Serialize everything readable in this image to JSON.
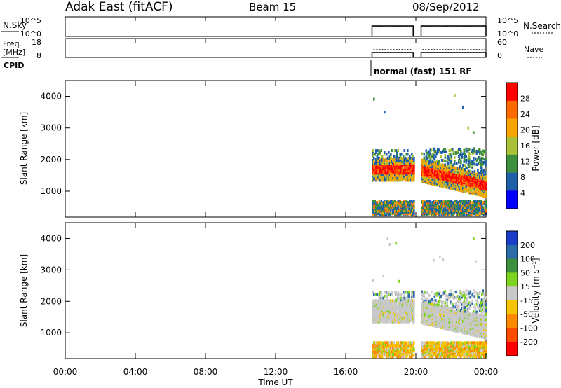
{
  "header": {
    "station": "Adak East (fitACF)",
    "beam": "Beam 15",
    "date": "08/Sep/2012"
  },
  "chart_data": [
    {
      "type": "line",
      "panel": "noise",
      "left_label": "N.Sky",
      "left_ticks": [
        "10^5",
        "10^0"
      ],
      "right_ticks": [
        "10^5",
        "10^0"
      ],
      "right_label": "N.Search",
      "data_present_hours": [
        [
          17.5,
          19.85
        ],
        [
          20.3,
          24.0
        ]
      ]
    },
    {
      "type": "line",
      "panel": "frequency",
      "left_label_lines": [
        "Freq.",
        "[MHz]"
      ],
      "ylim_left": [
        8,
        18
      ],
      "left_ticks": [
        "18",
        "8"
      ],
      "ylim_right": [
        0,
        60
      ],
      "right_ticks": [
        "60",
        "0"
      ],
      "right_label": "Nave"
    },
    {
      "type": "table",
      "panel": "cpid",
      "label": "CPID",
      "segments": [
        {
          "start_hour": 17.5,
          "text": "normal (fast) 151 RF"
        }
      ]
    },
    {
      "type": "heatmap",
      "panel": "power",
      "ylabel": "Slant Range [km]",
      "ylim": [
        180,
        4500
      ],
      "y_ticks": [
        1000,
        2000,
        3000,
        4000
      ],
      "colorbar_label": "Power [dB]",
      "colorbar_ticks": [
        "28",
        "24",
        "20",
        "16",
        "12",
        "8",
        "4"
      ],
      "colorbar_colors": [
        "#ff0000",
        "#ff6a00",
        "#f5a300",
        "#a9c23a",
        "#3d8f3d",
        "#1f5fa8",
        "#0000ff"
      ],
      "colorbar_range": [
        0,
        30
      ],
      "backscatter_bands": [
        {
          "t0": 17.5,
          "t1": 19.85,
          "r0": 1400,
          "r1": 2000,
          "level": "strong"
        },
        {
          "t0": 20.3,
          "t1": 24.0,
          "r0": 1100,
          "r1": 1900,
          "level": "strong"
        },
        {
          "t0": 17.5,
          "t1": 24.0,
          "r0": 180,
          "r1": 600,
          "level": "ground"
        }
      ]
    },
    {
      "type": "heatmap",
      "panel": "velocity",
      "ylabel": "Slant Range [km]",
      "ylim": [
        180,
        4500
      ],
      "y_ticks": [
        1000,
        2000,
        3000,
        4000
      ],
      "colorbar_label": "Velocity [m s⁻¹]",
      "colorbar_ticks": [
        "200",
        "100",
        "50",
        "15",
        "-15",
        "-50",
        "-100",
        "-200"
      ],
      "colorbar_colors": [
        "#1a3ec8",
        "#2a6ba8",
        "#3d8f3d",
        "#7ed321",
        "#c8c8c8",
        "#f5c400",
        "#ff8a00",
        "#ff4a00",
        "#ff0000"
      ],
      "xlabel": "Time UT",
      "x_ticks": [
        "00:00",
        "04:00",
        "08:00",
        "12:00",
        "16:00",
        "20:00",
        "00:00"
      ],
      "xlim_hours": [
        0,
        24
      ]
    }
  ]
}
